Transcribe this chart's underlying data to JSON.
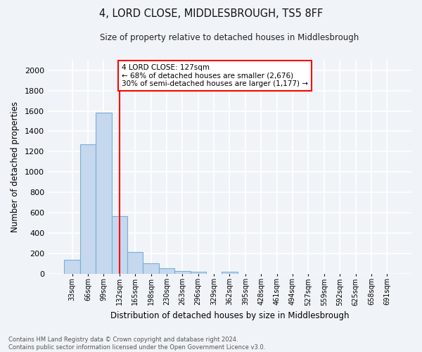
{
  "title": "4, LORD CLOSE, MIDDLESBROUGH, TS5 8FF",
  "subtitle": "Size of property relative to detached houses in Middlesbrough",
  "xlabel": "Distribution of detached houses by size in Middlesbrough",
  "ylabel": "Number of detached properties",
  "categories": [
    "33sqm",
    "66sqm",
    "99sqm",
    "132sqm",
    "165sqm",
    "198sqm",
    "230sqm",
    "263sqm",
    "296sqm",
    "329sqm",
    "362sqm",
    "395sqm",
    "428sqm",
    "461sqm",
    "494sqm",
    "527sqm",
    "559sqm",
    "592sqm",
    "625sqm",
    "658sqm",
    "691sqm"
  ],
  "values": [
    137,
    1270,
    1580,
    567,
    215,
    98,
    50,
    27,
    20,
    0,
    20,
    0,
    0,
    0,
    0,
    0,
    0,
    0,
    0,
    0,
    0
  ],
  "bar_color": "#c5d8ee",
  "bar_edge_color": "#7aaed6",
  "vline_x": 3,
  "vline_color": "red",
  "annotation_text": "4 LORD CLOSE: 127sqm\n← 68% of detached houses are smaller (2,676)\n30% of semi-detached houses are larger (1,177) →",
  "annotation_box_color": "white",
  "annotation_box_edge": "red",
  "ylim": [
    0,
    2100
  ],
  "yticks": [
    0,
    200,
    400,
    600,
    800,
    1000,
    1200,
    1400,
    1600,
    1800,
    2000
  ],
  "footer_text": "Contains HM Land Registry data © Crown copyright and database right 2024.\nContains public sector information licensed under the Open Government Licence v3.0.",
  "bg_color": "#f0f4f8",
  "plot_bg_color": "#f0f4f8"
}
